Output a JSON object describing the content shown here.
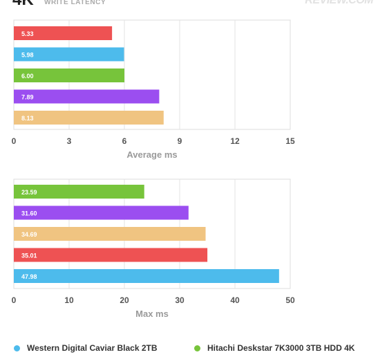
{
  "header": {
    "title": "4K",
    "subtitle": "WRITE LATENCY",
    "logo_text": "REVIEW.COM"
  },
  "colors": {
    "red": "#ee5253",
    "blue": "#4dbbec",
    "green": "#77c43b",
    "purple": "#9b4ef0",
    "tan": "#f0c481"
  },
  "legend": [
    {
      "label": "Western Digital Caviar Black 2TB",
      "color": "#4dbbec"
    },
    {
      "label": "Hitachi Deskstar 7K3000 3TB HDD 4K",
      "color": "#77c43b"
    }
  ],
  "chart_data": [
    {
      "type": "bar",
      "orientation": "horizontal",
      "xlabel": "Average ms",
      "xlim": [
        0,
        15
      ],
      "ticks": [
        0,
        3,
        6,
        9,
        12,
        15
      ],
      "grid": true,
      "bars": [
        {
          "value": 5.33,
          "label": "5.33",
          "color": "#ee5253"
        },
        {
          "value": 5.98,
          "label": "5.98",
          "color": "#4dbbec"
        },
        {
          "value": 6.0,
          "label": "6.00",
          "color": "#77c43b"
        },
        {
          "value": 7.89,
          "label": "7.89",
          "color": "#9b4ef0"
        },
        {
          "value": 8.13,
          "label": "8.13",
          "color": "#f0c481"
        }
      ]
    },
    {
      "type": "bar",
      "orientation": "horizontal",
      "xlabel": "Max ms",
      "xlim": [
        0,
        50
      ],
      "ticks": [
        0,
        10,
        20,
        30,
        40,
        50
      ],
      "grid": true,
      "bars": [
        {
          "value": 23.59,
          "label": "23.59",
          "color": "#77c43b"
        },
        {
          "value": 31.6,
          "label": "31.60",
          "color": "#9b4ef0"
        },
        {
          "value": 34.69,
          "label": "34.69",
          "color": "#f0c481"
        },
        {
          "value": 35.01,
          "label": "35.01",
          "color": "#ee5253"
        },
        {
          "value": 47.98,
          "label": "47.98",
          "color": "#4dbbec"
        }
      ]
    }
  ]
}
